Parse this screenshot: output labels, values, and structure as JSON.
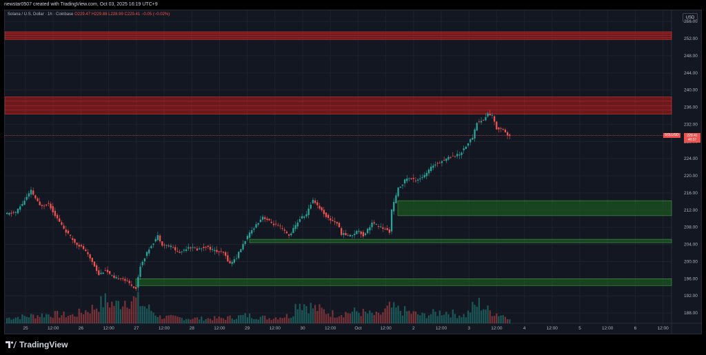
{
  "header": {
    "text": "newstar0507 created with TradingView.com, Oct 03, 2025 16:19 UTC+9"
  },
  "legend": {
    "symbol": "Solana / U.S. Dollar · 1h · Coinbase",
    "open": "O229.47",
    "high": "H229.88",
    "low": "L228.99",
    "close": "C229.41",
    "change": "−0.05 (−0.02%)"
  },
  "currency_label": "USD",
  "price_tag": {
    "symbol": "SOLUSD",
    "price": "229.41",
    "countdown": "40:37"
  },
  "footer": {
    "brand": "TradingView"
  },
  "colors": {
    "up": "#26a69a",
    "down": "#ef5350",
    "background": "#131722",
    "resistance_zone": "#b71c1c",
    "support_zone": "#1b5e20",
    "volume_up": "#26a69a",
    "volume_down": "#ef5350"
  },
  "chart_data": {
    "type": "candlestick",
    "y_ticks": [
      "188.00",
      "192.00",
      "196.00",
      "200.00",
      "204.00",
      "208.00",
      "212.00",
      "216.00",
      "220.00",
      "224.00",
      "228.00",
      "232.00",
      "236.00",
      "240.00",
      "244.00",
      "248.00",
      "252.00",
      "256.00"
    ],
    "x_ticks": [
      "25",
      "12:00",
      "26",
      "12:00",
      "27",
      "12:00",
      "28",
      "12:00",
      "29",
      "12:00",
      "30",
      "12:00",
      "Oct",
      "12:00",
      "2",
      "12:00",
      "3",
      "12:00",
      "4",
      "12:00",
      "5",
      "12:00",
      "6",
      "12:00"
    ],
    "ylim": [
      185.6,
      258.6
    ],
    "last_price": 229.41,
    "zones": [
      {
        "kind": "resistance",
        "from": 251.8,
        "to": 253.6
      },
      {
        "kind": "resistance",
        "from": 234.4,
        "to": 238.4
      },
      {
        "kind": "support",
        "from": 210.7,
        "to": 214.2
      },
      {
        "kind": "support",
        "from": 204.4,
        "to": 205.2
      },
      {
        "kind": "support",
        "from": 194.4,
        "to": 196.0
      }
    ],
    "price_path": [
      [
        0,
        211
      ],
      [
        5,
        211.5
      ],
      [
        8,
        213.5
      ],
      [
        12,
        216.5
      ],
      [
        16,
        213
      ],
      [
        20,
        213.5
      ],
      [
        24,
        210
      ],
      [
        28,
        207
      ],
      [
        32,
        204.5
      ],
      [
        36,
        203
      ],
      [
        40,
        200
      ],
      [
        43,
        197
      ],
      [
        46,
        198
      ],
      [
        50,
        196
      ],
      [
        53,
        196.3
      ],
      [
        56,
        195.3
      ],
      [
        60,
        193.7
      ],
      [
        62,
        199
      ],
      [
        66,
        203
      ],
      [
        70,
        206
      ],
      [
        72,
        204
      ],
      [
        76,
        203.5
      ],
      [
        80,
        202
      ],
      [
        84,
        203.5
      ],
      [
        88,
        202.8
      ],
      [
        92,
        203.5
      ],
      [
        96,
        202.5
      ],
      [
        100,
        202
      ],
      [
        103,
        199.5
      ],
      [
        106,
        201
      ],
      [
        110,
        205
      ],
      [
        114,
        208
      ],
      [
        118,
        210.5
      ],
      [
        122,
        209
      ],
      [
        126,
        208
      ],
      [
        130,
        206
      ],
      [
        135,
        210
      ],
      [
        138,
        211
      ],
      [
        141,
        214.5
      ],
      [
        144,
        212.5
      ],
      [
        148,
        210
      ],
      [
        152,
        209
      ],
      [
        154,
        206.5
      ],
      [
        158,
        206
      ],
      [
        162,
        207.3
      ],
      [
        164,
        206
      ],
      [
        168,
        209
      ],
      [
        172,
        208
      ],
      [
        176,
        207
      ],
      [
        177,
        212
      ],
      [
        180,
        217
      ],
      [
        184,
        219.5
      ],
      [
        188,
        219
      ],
      [
        192,
        220
      ],
      [
        196,
        222.5
      ],
      [
        200,
        223.5
      ],
      [
        204,
        224.5
      ],
      [
        208,
        225
      ],
      [
        211,
        227
      ],
      [
        214,
        229
      ],
      [
        216,
        232.5
      ],
      [
        219,
        233
      ],
      [
        221,
        234.5
      ],
      [
        223,
        234
      ],
      [
        225,
        231
      ],
      [
        228,
        231
      ],
      [
        230,
        229.4
      ]
    ],
    "volume_path": [
      [
        0,
        0.2
      ],
      [
        10,
        0.28
      ],
      [
        20,
        0.35
      ],
      [
        30,
        0.3
      ],
      [
        40,
        0.6
      ],
      [
        45,
        0.85
      ],
      [
        50,
        0.7
      ],
      [
        55,
        0.95
      ],
      [
        60,
        0.85
      ],
      [
        62,
        0.7
      ],
      [
        66,
        0.5
      ],
      [
        70,
        0.25
      ],
      [
        80,
        0.2
      ],
      [
        90,
        0.18
      ],
      [
        100,
        0.2
      ],
      [
        105,
        0.25
      ],
      [
        110,
        0.3
      ],
      [
        120,
        0.2
      ],
      [
        130,
        0.3
      ],
      [
        133,
        0.85
      ],
      [
        140,
        0.6
      ],
      [
        150,
        0.35
      ],
      [
        160,
        0.45
      ],
      [
        170,
        0.3
      ],
      [
        175,
        0.6
      ],
      [
        180,
        0.5
      ],
      [
        190,
        0.3
      ],
      [
        200,
        0.45
      ],
      [
        205,
        0.35
      ],
      [
        210,
        0.3
      ],
      [
        213,
        0.6
      ],
      [
        216,
        0.75
      ],
      [
        220,
        0.5
      ],
      [
        225,
        0.35
      ],
      [
        230,
        0.25
      ]
    ],
    "volume_max": 1.0
  }
}
